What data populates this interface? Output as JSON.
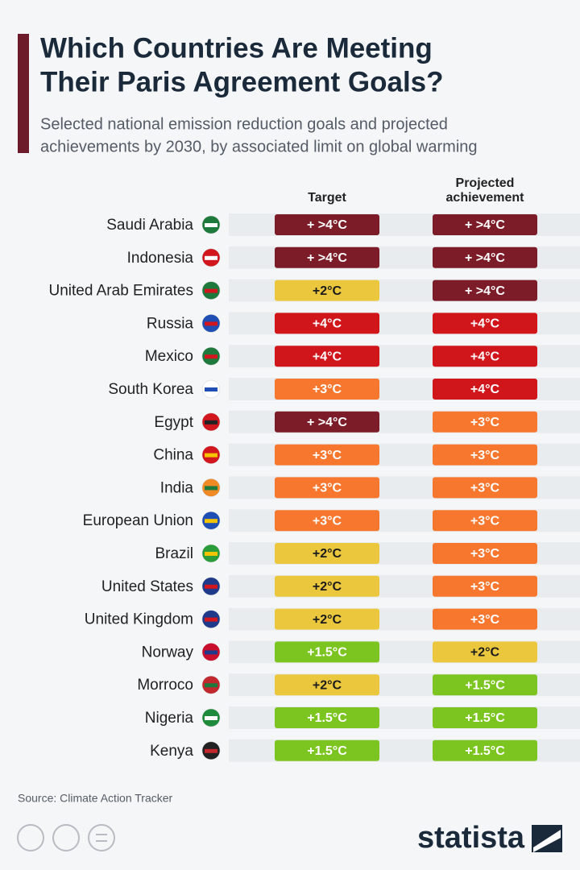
{
  "header": {
    "title": [
      "Which Countries Are Meeting",
      "Their Paris Agreement Goals?"
    ],
    "subtitle": [
      "Selected national emission reduction goals and projected",
      "achievements by 2030, by associated limit on global warming"
    ]
  },
  "table": {
    "columns": [
      "Target",
      [
        "Projected",
        "achievement"
      ]
    ],
    "rows": [
      [
        "Saudi Arabia",
        "+ >4°C",
        "+ >4°C"
      ],
      [
        "Indonesia",
        "+ >4°C",
        "+ >4°C"
      ],
      [
        "United Arab Emirates",
        "+2°C",
        "+ >4°C"
      ],
      [
        "Russia",
        "+4°C",
        "+4°C"
      ],
      [
        "Mexico",
        "+4°C",
        "+4°C"
      ],
      [
        "South Korea",
        "+3°C",
        "+4°C"
      ],
      [
        "Egypt",
        "+ >4°C",
        "+3°C"
      ],
      [
        "China",
        "+3°C",
        "+3°C"
      ],
      [
        "India",
        "+3°C",
        "+3°C"
      ],
      [
        "European Union",
        "+3°C",
        "+3°C"
      ],
      [
        "Brazil",
        "+2°C",
        "+3°C"
      ],
      [
        "United States",
        "+2°C",
        "+3°C"
      ],
      [
        "United Kingdom",
        "+2°C",
        "+3°C"
      ],
      [
        "Norway",
        "+1.5°C",
        "+2°C"
      ],
      [
        "Morroco",
        "+2°C",
        "+1.5°C"
      ],
      [
        "Nigeria",
        "+1.5°C",
        "+1.5°C"
      ],
      [
        "Kenya",
        "+1.5°C",
        "+1.5°C"
      ]
    ],
    "badge_styles": {
      "+ >4°C": {
        "fill": "#7b1c28",
        "text": "#ffffff"
      },
      "+4°C": {
        "fill": "#d0151b",
        "text": "#ffffff"
      },
      "+3°C": {
        "fill": "#f7772e",
        "text": "#ffffff"
      },
      "+2°C": {
        "fill": "#ebc73e",
        "text": "#1b1b1b"
      },
      "+1.5°C": {
        "fill": "#7cc520",
        "text": "#ffffff"
      }
    }
  },
  "footer": {
    "source": "Source: Climate Action Tracker",
    "brand": "statista"
  }
}
